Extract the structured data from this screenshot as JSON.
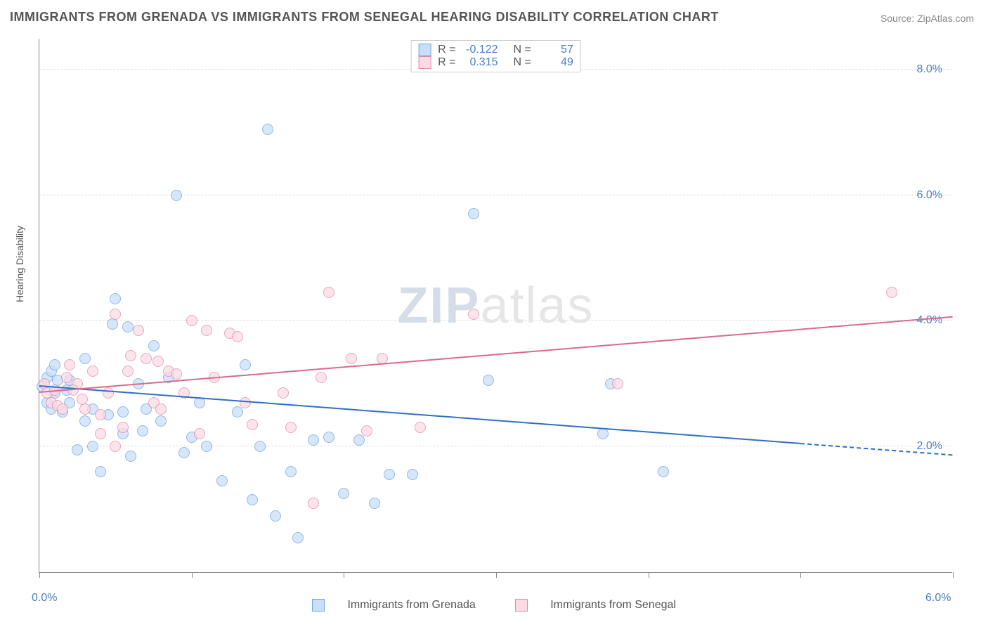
{
  "chart": {
    "type": "scatter",
    "title": "IMMIGRANTS FROM GRENADA VS IMMIGRANTS FROM SENEGAL HEARING DISABILITY CORRELATION CHART",
    "source": "Source: ZipAtlas.com",
    "ylabel": "Hearing Disability",
    "watermark_a": "ZIP",
    "watermark_b": "atlas",
    "background_color": "#ffffff",
    "grid_color": "#dddddd",
    "axis_color": "#888888",
    "tick_label_color": "#4a7fc4",
    "xlim": [
      0.0,
      6.0
    ],
    "ylim": [
      0.0,
      8.5
    ],
    "x_ticks": [
      0.0,
      1.0,
      2.0,
      3.0,
      4.0,
      5.0,
      6.0
    ],
    "x_tick_labels": {
      "first": "0.0%",
      "last": "6.0%"
    },
    "y_ticks": [
      2.0,
      4.0,
      6.0,
      8.0
    ],
    "y_tick_labels": [
      "2.0%",
      "4.0%",
      "6.0%",
      "8.0%"
    ],
    "series": [
      {
        "name": "Immigrants from Grenada",
        "marker_fill": "#c9defa",
        "marker_stroke": "#6fa3e0",
        "marker_radius": 8,
        "marker_opacity": 0.75,
        "R": "-0.122",
        "N": "57",
        "trend": {
          "color": "#2f6fc2",
          "y_at_x0": 2.95,
          "y_at_xmax": 1.85,
          "dash_from_x": 5.0
        },
        "points": [
          [
            0.02,
            2.95
          ],
          [
            0.05,
            3.1
          ],
          [
            0.05,
            2.7
          ],
          [
            0.08,
            2.6
          ],
          [
            0.08,
            3.2
          ],
          [
            0.1,
            2.85
          ],
          [
            0.1,
            3.3
          ],
          [
            0.15,
            2.55
          ],
          [
            0.18,
            2.9
          ],
          [
            0.2,
            2.7
          ],
          [
            0.2,
            3.05
          ],
          [
            0.25,
            1.95
          ],
          [
            0.3,
            3.4
          ],
          [
            0.35,
            2.6
          ],
          [
            0.4,
            1.6
          ],
          [
            0.45,
            2.5
          ],
          [
            0.48,
            3.95
          ],
          [
            0.5,
            4.35
          ],
          [
            0.55,
            2.55
          ],
          [
            0.58,
            3.9
          ],
          [
            0.6,
            1.85
          ],
          [
            0.65,
            3.0
          ],
          [
            0.68,
            2.25
          ],
          [
            0.7,
            2.6
          ],
          [
            0.75,
            3.6
          ],
          [
            0.8,
            2.4
          ],
          [
            0.85,
            3.1
          ],
          [
            0.9,
            6.0
          ],
          [
            0.95,
            1.9
          ],
          [
            1.0,
            2.15
          ],
          [
            1.05,
            2.7
          ],
          [
            1.1,
            2.0
          ],
          [
            1.2,
            1.45
          ],
          [
            1.3,
            2.55
          ],
          [
            1.35,
            3.3
          ],
          [
            1.4,
            1.15
          ],
          [
            1.45,
            2.0
          ],
          [
            1.5,
            7.05
          ],
          [
            1.55,
            0.9
          ],
          [
            1.65,
            1.6
          ],
          [
            1.7,
            0.55
          ],
          [
            1.8,
            2.1
          ],
          [
            1.9,
            2.15
          ],
          [
            2.0,
            1.25
          ],
          [
            2.1,
            2.1
          ],
          [
            2.2,
            1.1
          ],
          [
            2.3,
            1.55
          ],
          [
            2.45,
            1.55
          ],
          [
            2.85,
            5.7
          ],
          [
            2.95,
            3.05
          ],
          [
            3.7,
            2.2
          ],
          [
            3.75,
            3.0
          ],
          [
            4.1,
            1.6
          ],
          [
            0.35,
            2.0
          ],
          [
            0.12,
            3.05
          ],
          [
            0.3,
            2.4
          ],
          [
            0.55,
            2.2
          ]
        ]
      },
      {
        "name": "Immigrants from Senegal",
        "marker_fill": "#fcdbe4",
        "marker_stroke": "#e28aa6",
        "marker_radius": 8,
        "marker_opacity": 0.75,
        "R": "0.315",
        "N": "49",
        "trend": {
          "color": "#d86a8f",
          "y_at_x0": 2.85,
          "y_at_xmax": 4.05
        },
        "points": [
          [
            0.03,
            3.0
          ],
          [
            0.05,
            2.85
          ],
          [
            0.08,
            2.7
          ],
          [
            0.1,
            2.9
          ],
          [
            0.12,
            2.65
          ],
          [
            0.15,
            2.6
          ],
          [
            0.18,
            3.1
          ],
          [
            0.2,
            3.3
          ],
          [
            0.25,
            3.0
          ],
          [
            0.28,
            2.75
          ],
          [
            0.3,
            2.6
          ],
          [
            0.35,
            3.2
          ],
          [
            0.4,
            2.5
          ],
          [
            0.45,
            2.85
          ],
          [
            0.5,
            4.1
          ],
          [
            0.55,
            2.3
          ],
          [
            0.58,
            3.2
          ],
          [
            0.6,
            3.45
          ],
          [
            0.65,
            3.85
          ],
          [
            0.7,
            3.4
          ],
          [
            0.75,
            2.7
          ],
          [
            0.78,
            3.35
          ],
          [
            0.8,
            2.6
          ],
          [
            0.85,
            3.2
          ],
          [
            0.9,
            3.15
          ],
          [
            0.95,
            2.85
          ],
          [
            1.0,
            4.0
          ],
          [
            1.05,
            2.2
          ],
          [
            1.1,
            3.85
          ],
          [
            1.15,
            3.1
          ],
          [
            1.25,
            3.8
          ],
          [
            1.3,
            3.75
          ],
          [
            1.35,
            2.7
          ],
          [
            1.4,
            2.35
          ],
          [
            1.6,
            2.85
          ],
          [
            1.65,
            2.3
          ],
          [
            1.8,
            1.1
          ],
          [
            1.85,
            3.1
          ],
          [
            1.9,
            4.45
          ],
          [
            2.05,
            3.4
          ],
          [
            2.15,
            2.25
          ],
          [
            2.25,
            3.4
          ],
          [
            2.5,
            2.3
          ],
          [
            2.85,
            4.1
          ],
          [
            3.8,
            3.0
          ],
          [
            5.6,
            4.45
          ],
          [
            0.4,
            2.2
          ],
          [
            0.22,
            2.9
          ],
          [
            0.5,
            2.0
          ]
        ]
      }
    ],
    "legend_stats_labels": {
      "R": "R =",
      "N": "N ="
    }
  }
}
